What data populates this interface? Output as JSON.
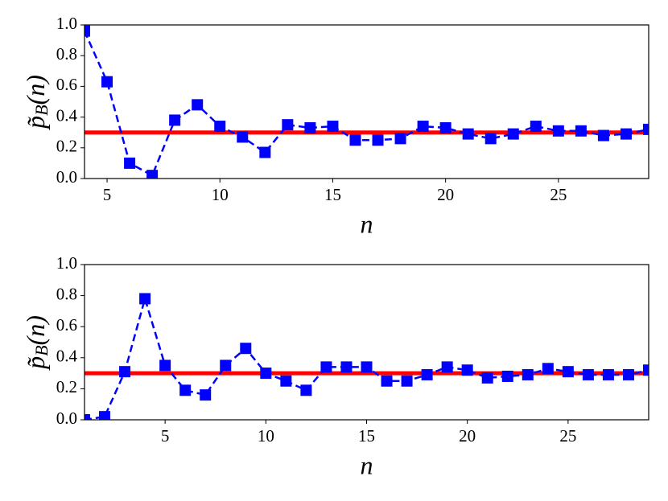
{
  "chart_data": [
    {
      "type": "line",
      "xlabel": "n",
      "ylabel_base": "p̃",
      "ylabel_sub": "B",
      "ylabel_arg": "(n)",
      "x": [
        4,
        5,
        6,
        7,
        8,
        9,
        10,
        11,
        12,
        13,
        14,
        15,
        16,
        17,
        18,
        19,
        20,
        21,
        22,
        23,
        24,
        25,
        26,
        27,
        28,
        29
      ],
      "series": [
        {
          "color": "#0000ff",
          "values": [
            0.96,
            0.63,
            0.1,
            0.02,
            0.38,
            0.48,
            0.34,
            0.27,
            0.17,
            0.35,
            0.33,
            0.34,
            0.25,
            0.25,
            0.26,
            0.34,
            0.33,
            0.29,
            0.26,
            0.29,
            0.34,
            0.31,
            0.31,
            0.28,
            0.29,
            0.32
          ]
        }
      ],
      "hline": {
        "value": 0.3,
        "color": "#ff0000"
      },
      "xlim": [
        4,
        29
      ],
      "xticks": [
        5,
        10,
        15,
        20,
        25
      ],
      "ylim": [
        0,
        1
      ],
      "yticks": [
        {
          "value": 0,
          "label": "0.0"
        },
        {
          "value": 0.2,
          "label": "0.2"
        },
        {
          "value": 0.4,
          "label": "0.4"
        },
        {
          "value": 0.6,
          "label": "0.6"
        },
        {
          "value": 0.8,
          "label": "0.8"
        },
        {
          "value": 1,
          "label": "1.0"
        }
      ]
    },
    {
      "type": "line",
      "xlabel": "n",
      "ylabel_base": "p̃",
      "ylabel_sub": "B",
      "ylabel_arg": "(n)",
      "x": [
        1,
        2,
        3,
        4,
        5,
        6,
        7,
        8,
        9,
        10,
        11,
        12,
        13,
        14,
        15,
        16,
        17,
        18,
        19,
        20,
        21,
        22,
        23,
        24,
        25,
        26,
        27,
        28,
        29
      ],
      "series": [
        {
          "color": "#0000ff",
          "values": [
            0.0,
            0.02,
            0.31,
            0.78,
            0.35,
            0.19,
            0.16,
            0.35,
            0.46,
            0.3,
            0.25,
            0.19,
            0.34,
            0.34,
            0.34,
            0.25,
            0.25,
            0.29,
            0.34,
            0.32,
            0.27,
            0.28,
            0.29,
            0.33,
            0.31,
            0.29,
            0.29,
            0.29,
            0.32
          ]
        }
      ],
      "hline": {
        "value": 0.3,
        "color": "#ff0000"
      },
      "xlim": [
        1,
        29
      ],
      "xticks": [
        5,
        10,
        15,
        20,
        25
      ],
      "ylim": [
        0,
        1
      ],
      "yticks": [
        {
          "value": 0,
          "label": "0.0"
        },
        {
          "value": 0.2,
          "label": "0.2"
        },
        {
          "value": 0.4,
          "label": "0.4"
        },
        {
          "value": 0.6,
          "label": "0.6"
        },
        {
          "value": 0.8,
          "label": "0.8"
        },
        {
          "value": 1,
          "label": "1.0"
        }
      ]
    }
  ]
}
